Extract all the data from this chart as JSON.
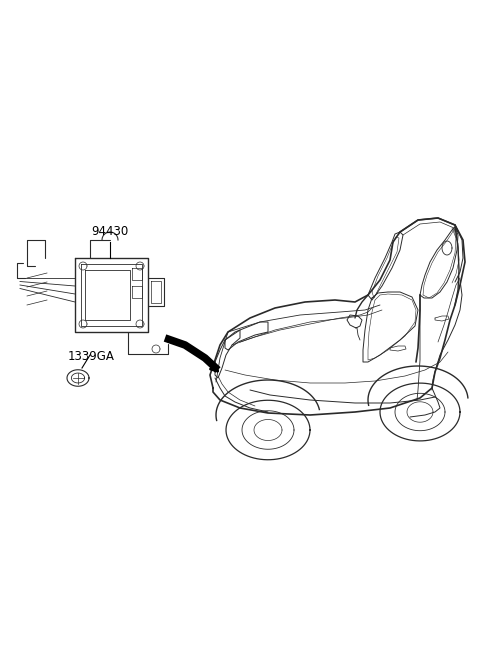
{
  "background_color": "#ffffff",
  "fig_width": 4.8,
  "fig_height": 6.55,
  "dpi": 100,
  "label_94430": "94430",
  "label_1339GA": "1339GA",
  "line_color": "#2a2a2a",
  "font_size_labels": 7.5
}
